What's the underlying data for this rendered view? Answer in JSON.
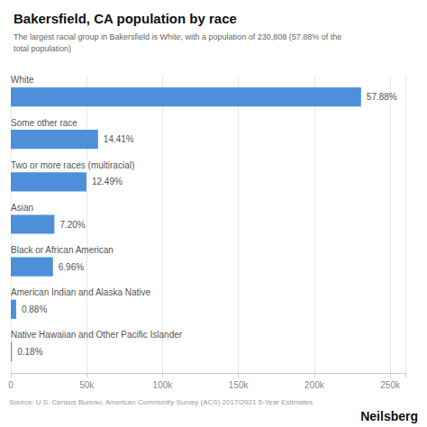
{
  "chart_data": {
    "type": "bar",
    "orientation": "horizontal",
    "title": "Bakersfield, CA population by race",
    "subtitle": "The largest racial group in Bakersfield is White, with a population of 230,808 (57.88% of the\ntotal population)",
    "categories": [
      "White",
      "Some other race",
      "Two or more races (multiracial)",
      "Asian",
      "Black or African American",
      "American Indian and Alaska Native",
      "Native Hawaiian and Other Pacific Islander"
    ],
    "values": [
      230808,
      57478,
      49826,
      28733,
      27769,
      3511,
      718
    ],
    "percentages": [
      "57.88%",
      "14.41%",
      "12.49%",
      "7.20%",
      "6.96%",
      "0.88%",
      "0.18%"
    ],
    "color": "#4d90d9",
    "xlim": [
      0,
      260000
    ],
    "xticks": [
      0,
      {
        "value": 50000,
        "label": "50k"
      },
      {
        "value": 100000,
        "label": "100k"
      },
      {
        "value": 150000,
        "label": "150k"
      },
      {
        "value": 200000,
        "label": "200k"
      },
      {
        "value": 250000,
        "label": "250k"
      }
    ],
    "grid": true,
    "source": "Source: U.S. Census Bureau, American Community Survey (ACS) 2017/2021 5-Year Estimates",
    "brand": "Neilsberg"
  }
}
